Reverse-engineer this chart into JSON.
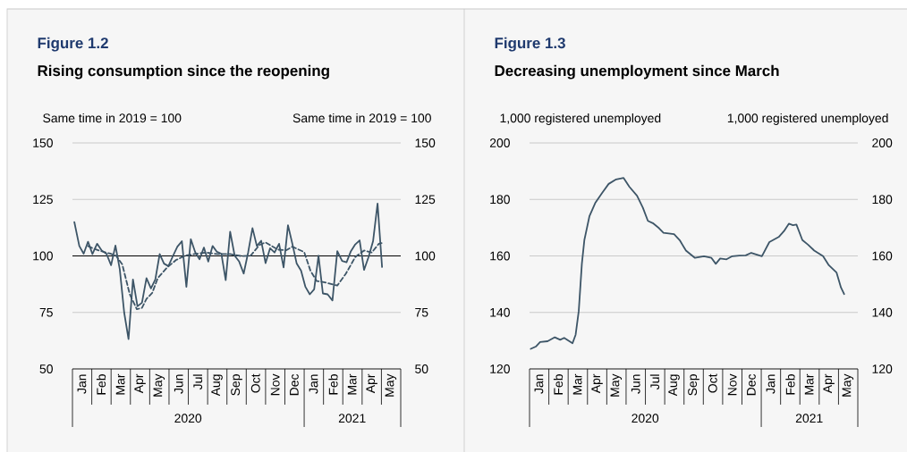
{
  "chart_data": [
    {
      "type": "line",
      "title": "Figure 1.2",
      "subtitle": "Rising consumption since the reopening",
      "ylabel": "Same time in 2019 = 100",
      "y2label": "Same time in 2019 = 100",
      "grid": "y",
      "marker": "none",
      "xlim": [
        "2020-01-01",
        "2021-06-01"
      ],
      "xticks": [
        {
          "value": "2020-01-16",
          "label": "Jan"
        },
        {
          "value": "2020-02-15",
          "label": "Feb"
        },
        {
          "value": "2020-03-16",
          "label": "Mar"
        },
        {
          "value": "2020-04-16",
          "label": "Apr"
        },
        {
          "value": "2020-05-16",
          "label": "May"
        },
        {
          "value": "2020-06-16",
          "label": "Jun"
        },
        {
          "value": "2020-07-16",
          "label": "Jul"
        },
        {
          "value": "2020-08-16",
          "label": "Aug"
        },
        {
          "value": "2020-09-16",
          "label": "Sep"
        },
        {
          "value": "2020-10-16",
          "label": "Oct"
        },
        {
          "value": "2020-11-16",
          "label": "Nov"
        },
        {
          "value": "2020-12-16",
          "label": "Dec"
        },
        {
          "value": "2021-01-16",
          "label": "Jan"
        },
        {
          "value": "2021-02-15",
          "label": "Feb"
        },
        {
          "value": "2021-03-16",
          "label": "Mar"
        },
        {
          "value": "2021-04-16",
          "label": "Apr"
        },
        {
          "value": "2021-05-16",
          "label": "May"
        }
      ],
      "ylim": [
        50,
        150
      ],
      "yticks": [
        50,
        75,
        100,
        125,
        150
      ],
      "y2lim": [
        50,
        150
      ],
      "y2ticks": [
        50,
        75,
        100,
        125,
        150
      ],
      "ref_lines": [
        {
          "axis": "y",
          "value": 100,
          "color": "#000000"
        }
      ],
      "annotations": [
        "2020",
        "2021"
      ],
      "series": [
        {
          "color": "#3d5567",
          "line_style": "solid",
          "x": [
            "2020-01-04",
            "2020-01-12",
            "2020-01-19",
            "2020-01-26",
            "2020-02-02",
            "2020-02-09",
            "2020-02-16",
            "2020-02-23",
            "2020-03-01",
            "2020-03-08",
            "2020-03-15",
            "2020-03-22",
            "2020-03-29",
            "2020-04-05",
            "2020-04-12",
            "2020-04-19",
            "2020-04-26",
            "2020-05-03",
            "2020-05-10",
            "2020-05-17",
            "2020-05-24",
            "2020-05-31",
            "2020-06-07",
            "2020-06-14",
            "2020-06-21",
            "2020-06-28",
            "2020-07-05",
            "2020-07-12",
            "2020-07-19",
            "2020-07-26",
            "2020-08-02",
            "2020-08-09",
            "2020-08-16",
            "2020-08-23",
            "2020-08-30",
            "2020-09-06",
            "2020-09-13",
            "2020-09-20",
            "2020-09-27",
            "2020-10-04",
            "2020-10-11",
            "2020-10-18",
            "2020-10-25",
            "2020-11-01",
            "2020-11-08",
            "2020-11-15",
            "2020-11-22",
            "2020-11-29",
            "2020-12-06",
            "2020-12-13",
            "2020-12-20",
            "2020-12-27",
            "2021-01-03",
            "2021-01-10",
            "2021-01-17",
            "2021-01-24",
            "2021-01-31",
            "2021-02-07",
            "2021-02-14",
            "2021-02-21",
            "2021-02-28",
            "2021-03-07",
            "2021-03-14",
            "2021-03-21",
            "2021-03-28",
            "2021-04-04",
            "2021-04-11",
            "2021-04-18",
            "2021-04-25",
            "2021-05-02"
          ],
          "values": [
            115,
            104.4,
            101,
            106.3,
            100.8,
            105.4,
            102.4,
            101,
            95.9,
            104.6,
            94,
            75,
            63.2,
            89.6,
            77.7,
            79.3,
            90.2,
            85.6,
            89.6,
            100.8,
            96.6,
            95.5,
            99.9,
            104.1,
            106.5,
            86.3,
            107.4,
            101.7,
            98.5,
            103.7,
            97.5,
            104.4,
            101.8,
            101,
            89.3,
            110.7,
            100.1,
            97.5,
            92.2,
            101.5,
            112.3,
            104.4,
            106.7,
            96.8,
            103.4,
            101.5,
            105.4,
            94.9,
            113.6,
            105.4,
            96.6,
            93.5,
            86.3,
            83,
            85.2,
            100.1,
            83.4,
            83,
            80.3,
            102.1,
            97.8,
            97.2,
            102.1,
            105.1,
            106.9,
            93.8,
            99.5,
            106.5,
            123.2,
            95.1
          ]
        },
        {
          "color": "#3d5567",
          "line_style": "dashed",
          "x": [
            "2020-01-26",
            "2020-02-02",
            "2020-02-15",
            "2020-02-29",
            "2020-03-09",
            "2020-03-19",
            "2020-03-31",
            "2020-04-11",
            "2020-04-19",
            "2020-04-26",
            "2020-05-05",
            "2020-05-14",
            "2020-05-29",
            "2020-06-12",
            "2020-06-26",
            "2020-07-10",
            "2020-07-29",
            "2020-08-17",
            "2020-09-06",
            "2020-09-24",
            "2020-10-08",
            "2020-10-22",
            "2020-11-01",
            "2020-11-20",
            "2020-12-03",
            "2020-12-13",
            "2021-01-01",
            "2021-01-11",
            "2021-01-21",
            "2021-02-03",
            "2021-02-21",
            "2021-03-06",
            "2021-03-21",
            "2021-04-04",
            "2021-04-16",
            "2021-04-27",
            "2021-05-04"
          ],
          "values": [
            104.4,
            103.4,
            102.1,
            101,
            100.1,
            96.2,
            83,
            76.4,
            77,
            81,
            83.6,
            90.2,
            94.9,
            98.2,
            100.1,
            100.8,
            101.5,
            100.8,
            100.8,
            99.9,
            100.1,
            104.8,
            106,
            102.8,
            102.5,
            104.1,
            101.7,
            93.5,
            88.9,
            88.3,
            86.9,
            92.2,
            99.5,
            102.4,
            101.5,
            105.4,
            105.8
          ]
        }
      ]
    },
    {
      "type": "line",
      "title": "Figure 1.3",
      "subtitle": "Decreasing unemployment since March",
      "ylabel": "1,000 registered unemployed",
      "y2label": "1,000 registered unemployed",
      "grid": "y",
      "marker": "none",
      "xlim": [
        "2020-01-01",
        "2021-06-01"
      ],
      "xticks": [
        {
          "value": "2020-01-16",
          "label": "Jan"
        },
        {
          "value": "2020-02-15",
          "label": "Feb"
        },
        {
          "value": "2020-03-16",
          "label": "Mar"
        },
        {
          "value": "2020-04-16",
          "label": "Apr"
        },
        {
          "value": "2020-05-16",
          "label": "May"
        },
        {
          "value": "2020-06-16",
          "label": "Jun"
        },
        {
          "value": "2020-07-16",
          "label": "Jul"
        },
        {
          "value": "2020-08-16",
          "label": "Aug"
        },
        {
          "value": "2020-09-16",
          "label": "Sep"
        },
        {
          "value": "2020-10-16",
          "label": "Oct"
        },
        {
          "value": "2020-11-16",
          "label": "Nov"
        },
        {
          "value": "2020-12-16",
          "label": "Dec"
        },
        {
          "value": "2021-01-16",
          "label": "Jan"
        },
        {
          "value": "2021-02-15",
          "label": "Feb"
        },
        {
          "value": "2021-03-16",
          "label": "Mar"
        },
        {
          "value": "2021-04-16",
          "label": "Apr"
        },
        {
          "value": "2021-05-16",
          "label": "May"
        }
      ],
      "ylim": [
        120,
        200
      ],
      "yticks": [
        120,
        140,
        160,
        180,
        200
      ],
      "y2lim": [
        120,
        200
      ],
      "y2ticks": [
        120,
        140,
        160,
        180,
        200
      ],
      "annotations": [
        "2020",
        "2021"
      ],
      "series": [
        {
          "color": "#3d5567",
          "line_style": "solid",
          "x": [
            "2020-01-03",
            "2020-01-11",
            "2020-01-18",
            "2020-01-30",
            "2020-02-10",
            "2020-02-18",
            "2020-02-24",
            "2020-03-08",
            "2020-03-13",
            "2020-03-18",
            "2020-03-23",
            "2020-03-27",
            "2020-04-04",
            "2020-04-13",
            "2020-04-24",
            "2020-05-04",
            "2020-05-16",
            "2020-05-28",
            "2020-06-06",
            "2020-06-18",
            "2020-06-27",
            "2020-07-05",
            "2020-07-13",
            "2020-07-23",
            "2020-07-30",
            "2020-08-16",
            "2020-08-25",
            "2020-09-04",
            "2020-09-18",
            "2020-10-02",
            "2020-10-14",
            "2020-10-21",
            "2020-10-28",
            "2020-11-07",
            "2020-11-16",
            "2020-11-27",
            "2020-12-07",
            "2020-12-16",
            "2021-01-02",
            "2021-01-14",
            "2021-01-29",
            "2021-02-06",
            "2021-02-13",
            "2021-02-19",
            "2021-02-24",
            "2021-03-05",
            "2021-03-14",
            "2021-03-24",
            "2021-04-07",
            "2021-04-16",
            "2021-04-28",
            "2021-05-05",
            "2021-05-10"
          ],
          "values": [
            127.1,
            127.9,
            129.5,
            129.8,
            131.2,
            130.3,
            131,
            129.1,
            132.1,
            140.5,
            157.2,
            165.6,
            174,
            178.7,
            182.4,
            185.5,
            187.1,
            187.6,
            184.5,
            181.3,
            177.1,
            172.4,
            171.6,
            169.8,
            168.2,
            167.7,
            165.6,
            161.9,
            159.3,
            159.9,
            159.3,
            157.2,
            159.1,
            158.8,
            159.9,
            160.1,
            160.2,
            161.1,
            159.9,
            164.9,
            166.7,
            168.8,
            171.4,
            170.9,
            171.1,
            165.6,
            164,
            161.9,
            159.9,
            156.7,
            154.1,
            148.8,
            146.5
          ]
        }
      ]
    }
  ]
}
